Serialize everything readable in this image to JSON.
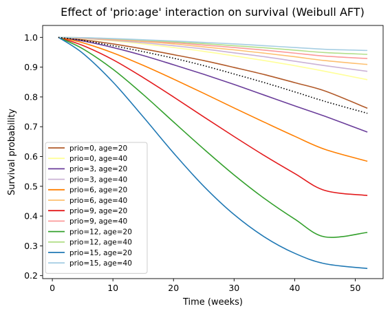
{
  "chart_data": {
    "type": "line",
    "title": "Effect of 'prio:age' interaction on survival (Weibull AFT)",
    "xlabel": "Time (weeks)",
    "ylabel": "Survival probability",
    "xlim": [
      -1.6,
      54.6
    ],
    "ylim": [
      0.19,
      1.04
    ],
    "xticks": [
      0,
      10,
      20,
      30,
      40,
      50
    ],
    "yticks": [
      0.2,
      0.3,
      0.4,
      0.5,
      0.6,
      0.7,
      0.8,
      0.9,
      1.0
    ],
    "xtick_labels": [
      "0",
      "10",
      "20",
      "30",
      "40",
      "50"
    ],
    "ytick_labels": [
      "0.2",
      "0.3",
      "0.4",
      "0.5",
      "0.6",
      "0.7",
      "0.8",
      "0.9",
      "1.0"
    ],
    "grid": false,
    "legend_position": "lower-left",
    "x": [
      1,
      5,
      10,
      15,
      20,
      25,
      30,
      35,
      40,
      45,
      52
    ],
    "series": [
      {
        "name": "prio=0, age=20",
        "color": "#b15928",
        "values": [
          1.0,
          0.992,
          0.978,
          0.961,
          0.942,
          0.922,
          0.899,
          0.875,
          0.848,
          0.82,
          0.762
        ]
      },
      {
        "name": "prio=0, age=40",
        "color": "#ffff99",
        "values": [
          1.0,
          0.996,
          0.988,
          0.978,
          0.966,
          0.953,
          0.938,
          0.922,
          0.905,
          0.886,
          0.858
        ]
      },
      {
        "name": "prio=3, age=20",
        "color": "#6a3d9a",
        "values": [
          1.0,
          0.988,
          0.966,
          0.939,
          0.908,
          0.876,
          0.842,
          0.806,
          0.77,
          0.735,
          0.682
        ]
      },
      {
        "name": "prio=3, age=40",
        "color": "#cab2d6",
        "values": [
          1.0,
          0.997,
          0.99,
          0.982,
          0.972,
          0.961,
          0.948,
          0.935,
          0.92,
          0.905,
          0.886
        ]
      },
      {
        "name": "prio=6, age=20",
        "color": "#ff7f00",
        "values": [
          1.0,
          0.982,
          0.948,
          0.906,
          0.86,
          0.812,
          0.763,
          0.715,
          0.668,
          0.624,
          0.584
        ]
      },
      {
        "name": "prio=6, age=40",
        "color": "#fdbf6f",
        "values": [
          1.0,
          0.998,
          0.992,
          0.986,
          0.978,
          0.968,
          0.958,
          0.947,
          0.935,
          0.922,
          0.909
        ]
      },
      {
        "name": "prio=9, age=20",
        "color": "#e31a1c",
        "values": [
          1.0,
          0.973,
          0.925,
          0.865,
          0.8,
          0.733,
          0.667,
          0.603,
          0.543,
          0.486,
          0.469
        ]
      },
      {
        "name": "prio=9, age=40",
        "color": "#fb9a99",
        "values": [
          1.0,
          0.998,
          0.994,
          0.988,
          0.982,
          0.974,
          0.966,
          0.957,
          0.947,
          0.937,
          0.929
        ]
      },
      {
        "name": "prio=12, age=20",
        "color": "#33a02c",
        "values": [
          1.0,
          0.962,
          0.893,
          0.808,
          0.716,
          0.625,
          0.538,
          0.459,
          0.39,
          0.33,
          0.345
        ]
      },
      {
        "name": "prio=12, age=40",
        "color": "#b2df8a",
        "values": [
          1.0,
          0.999,
          0.995,
          0.99,
          0.985,
          0.979,
          0.972,
          0.965,
          0.957,
          0.949,
          0.943
        ]
      },
      {
        "name": "prio=15, age=20",
        "color": "#1f78b4",
        "values": [
          1.0,
          0.947,
          0.85,
          0.733,
          0.612,
          0.5,
          0.405,
          0.33,
          0.275,
          0.24,
          0.224
        ]
      },
      {
        "name": "prio=15, age=40",
        "color": "#a6cee3",
        "values": [
          1.0,
          0.999,
          0.996,
          0.992,
          0.988,
          0.983,
          0.978,
          0.972,
          0.966,
          0.96,
          0.956
        ]
      }
    ],
    "reference_line": {
      "style": "dotted",
      "color": "#000000",
      "values": [
        1.0,
        0.99,
        0.972,
        0.952,
        0.93,
        0.905,
        0.877,
        0.848,
        0.817,
        0.785,
        0.745
      ]
    }
  }
}
